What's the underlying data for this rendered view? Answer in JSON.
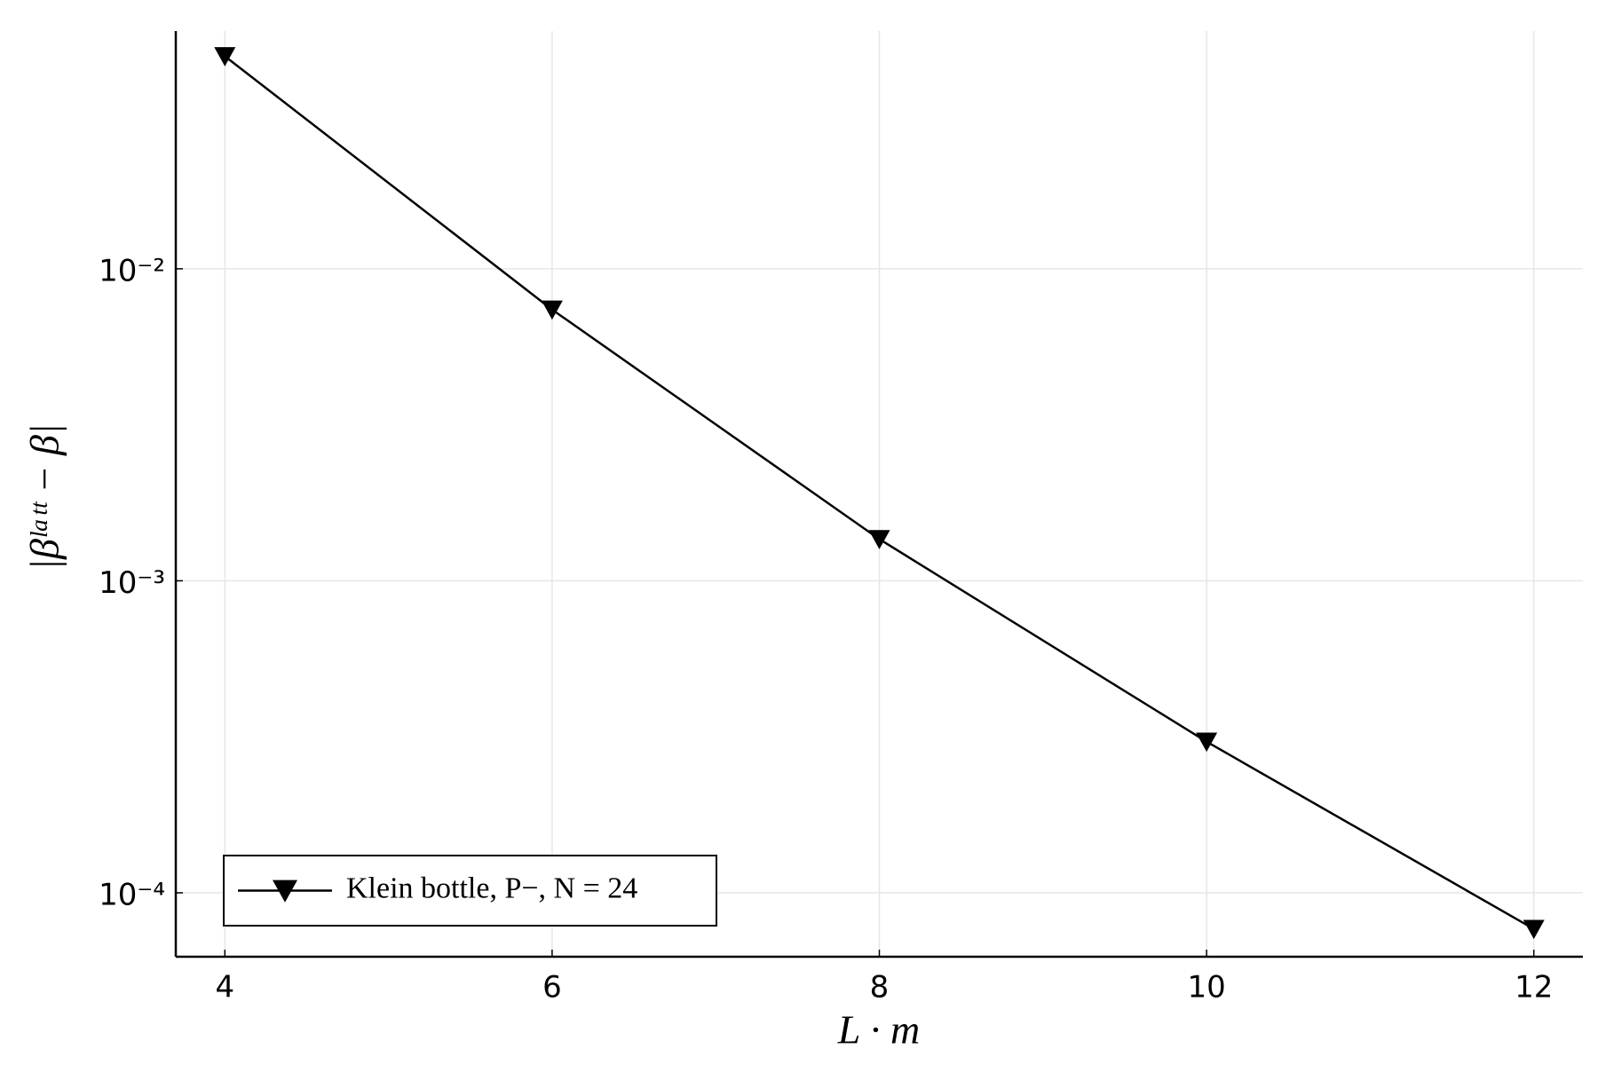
{
  "chart_data": {
    "type": "line",
    "log_y": true,
    "grid": true,
    "legend": "lower left",
    "xlabel": "L · m",
    "ylabel": "|βˡᵃᵗᵗ − β|",
    "x": [
      4,
      6,
      8,
      10,
      12
    ],
    "series": [
      {
        "name": "Klein bottle, P−, N = 24",
        "color": "#000000",
        "marker": "triangle-down",
        "values": [
          0.048,
          0.0074,
          0.00136,
          0.000305,
          7.66e-05
        ]
      }
    ],
    "xlim": [
      3.7,
      12.3
    ],
    "xticks": [
      4,
      6,
      8,
      10,
      12
    ],
    "ylim": [
      6.24e-05,
      0.0578
    ],
    "yticks": [
      {
        "value": 0.0001,
        "label": "10⁻⁴"
      },
      {
        "value": 0.001,
        "label": "10⁻³"
      },
      {
        "value": 0.01,
        "label": "10⁻²"
      }
    ]
  }
}
